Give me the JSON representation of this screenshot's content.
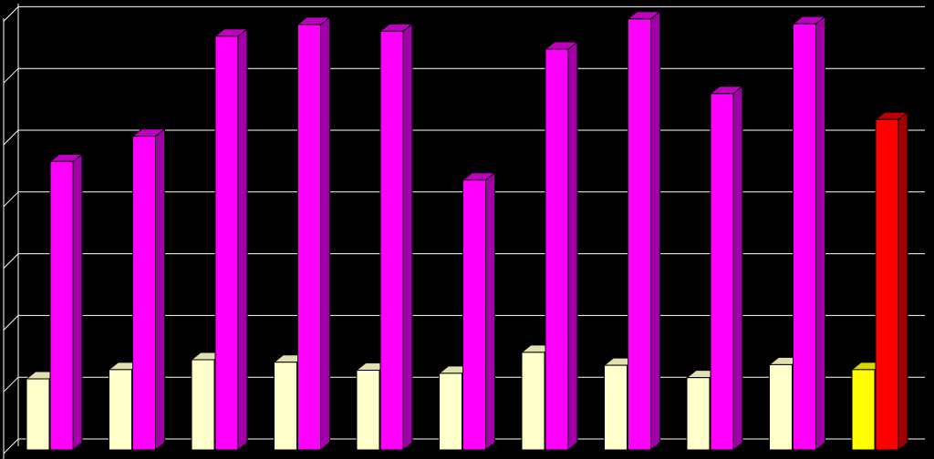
{
  "chart_data": {
    "type": "bar",
    "style": "3d-clustered-column",
    "categories": [
      "",
      "",
      "",
      "",
      "",
      "",
      "",
      "",
      "",
      "",
      ""
    ],
    "series": [
      {
        "values": [
          1.15,
          1.3,
          1.46,
          1.42,
          1.29,
          1.24,
          1.58,
          1.37,
          1.17,
          1.38,
          1.3
        ]
      },
      {
        "values": [
          4.67,
          5.08,
          6.7,
          6.89,
          6.78,
          4.37,
          6.49,
          6.98,
          5.77,
          6.9,
          5.35
        ]
      }
    ],
    "ylim": [
      0,
      7
    ],
    "yticks": [
      0,
      1,
      2,
      3,
      4,
      5,
      6,
      7
    ],
    "grid": true,
    "legend": "none",
    "colors": {
      "background": "#000000",
      "grid": "#ffffff",
      "series1": "#ffffcc",
      "series1_side": "#c8c894",
      "series1_top": "#e0e0b0",
      "series2": "#ff00ff",
      "series2_side": "#a000a8",
      "series2_top": "#c000c0",
      "highlight_series1": "#ffff00",
      "highlight_series1_side": "#b0b000",
      "highlight_series1_top": "#d8d800",
      "highlight_series2": "#ff0000",
      "highlight_series2_side": "#a00000",
      "highlight_series2_top": "#c00000"
    },
    "highlight_index": 10
  }
}
